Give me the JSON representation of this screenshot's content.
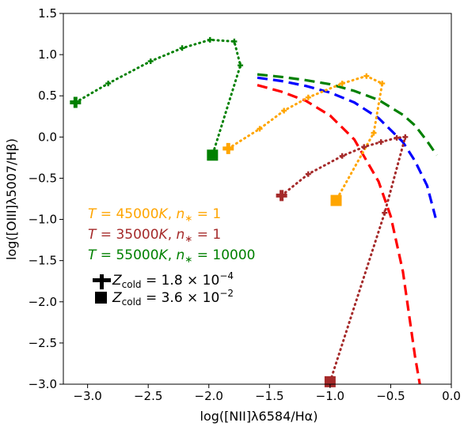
{
  "chart_data": {
    "type": "line",
    "xlabel": "log([NII]λ6584/Hα)",
    "ylabel": "log([OIII]λ5007/Hβ)",
    "xlim": [
      -3.2,
      0.0
    ],
    "ylim": [
      -3.0,
      1.5
    ],
    "xticks": [
      -3.0,
      -2.5,
      -2.0,
      -1.5,
      -1.0,
      -0.5,
      0.0
    ],
    "xtick_labels": [
      "−3.0",
      "−2.5",
      "−2.0",
      "−1.5",
      "−1.0",
      "−0.5",
      "0.0"
    ],
    "yticks": [
      -3.0,
      -2.5,
      -2.0,
      -1.5,
      -1.0,
      -0.5,
      0.0,
      0.5,
      1.0,
      1.5
    ],
    "ytick_labels": [
      "−3.0",
      "−2.5",
      "−2.0",
      "−1.5",
      "−1.0",
      "−0.5",
      "0.0",
      "0.5",
      "1.0",
      "1.5"
    ],
    "grid": false,
    "reference_curves": [
      {
        "color": "#ff0000",
        "points": [
          [
            -1.6,
            0.63
          ],
          [
            -1.4,
            0.55
          ],
          [
            -1.2,
            0.44
          ],
          [
            -1.0,
            0.26
          ],
          [
            -0.8,
            -0.03
          ],
          [
            -0.6,
            -0.54
          ],
          [
            -0.5,
            -0.96
          ],
          [
            -0.4,
            -1.63
          ],
          [
            -0.3,
            -2.66
          ],
          [
            -0.26,
            -3.0
          ]
        ]
      },
      {
        "color": "#0000ff",
        "points": [
          [
            -1.6,
            0.72
          ],
          [
            -1.4,
            0.68
          ],
          [
            -1.2,
            0.62
          ],
          [
            -1.0,
            0.54
          ],
          [
            -0.8,
            0.42
          ],
          [
            -0.6,
            0.23
          ],
          [
            -0.4,
            -0.06
          ],
          [
            -0.3,
            -0.29
          ],
          [
            -0.2,
            -0.59
          ],
          [
            -0.13,
            -0.98
          ]
        ]
      },
      {
        "color": "#008000",
        "points": [
          [
            -1.6,
            0.76
          ],
          [
            -1.4,
            0.73
          ],
          [
            -1.2,
            0.69
          ],
          [
            -1.0,
            0.64
          ],
          [
            -0.8,
            0.56
          ],
          [
            -0.6,
            0.45
          ],
          [
            -0.4,
            0.27
          ],
          [
            -0.3,
            0.14
          ],
          [
            -0.2,
            -0.05
          ],
          [
            -0.12,
            -0.22
          ]
        ]
      }
    ],
    "series": [
      {
        "name": "T = 45000K, n* = 1",
        "color": "#ffa500",
        "x": [
          -1.84,
          -1.58,
          -1.38,
          -1.18,
          -0.9,
          -0.7,
          -0.57,
          -0.64,
          -0.95
        ],
        "y": [
          -0.14,
          0.1,
          0.32,
          0.48,
          0.65,
          0.74,
          0.65,
          0.05,
          -0.77
        ]
      },
      {
        "name": "T = 35000K, n* = 1",
        "color": "#a52a2a",
        "x": [
          -1.4,
          -1.18,
          -0.9,
          -0.72,
          -0.58,
          -0.45,
          -0.38,
          -0.55,
          -1.0
        ],
        "y": [
          -0.71,
          -0.45,
          -0.23,
          -0.12,
          -0.06,
          -0.01,
          0.0,
          -0.92,
          -2.97
        ]
      },
      {
        "name": "T = 55000K, n* = 10000",
        "color": "#008000",
        "x": [
          -3.1,
          -2.83,
          -2.48,
          -2.22,
          -1.99,
          -1.79,
          -1.74,
          -1.97
        ],
        "y": [
          0.42,
          0.65,
          0.92,
          1.08,
          1.18,
          1.16,
          0.87,
          -0.22
        ]
      }
    ],
    "legend": {
      "placement": "center-left",
      "series_entries": [
        {
          "label": "T = 45000K, n* = 1",
          "color": "#ffa500"
        },
        {
          "label": "T = 35000K, n* = 1",
          "color": "#a52a2a"
        },
        {
          "label": "T = 55000K, n* = 10000",
          "color": "#008000"
        }
      ],
      "marker_entries": [
        {
          "marker": "plus",
          "label": "Z_cold = 1.8 × 10^−4"
        },
        {
          "marker": "square",
          "label": "Z_cold = 3.6 × 10^−2"
        }
      ]
    }
  }
}
